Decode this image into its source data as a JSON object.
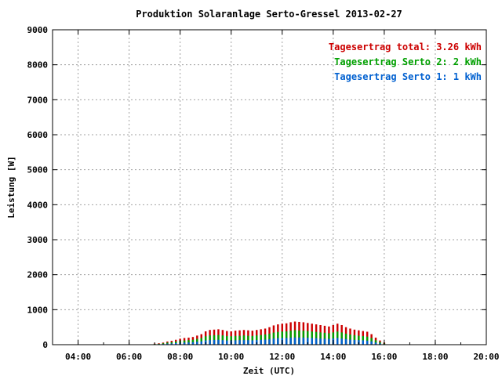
{
  "chart_data": {
    "type": "bar",
    "title": "Produktion Solaranlage Serto-Gressel 2013-02-27",
    "xlabel": "Zeit (UTC)",
    "ylabel": "Leistung [W]",
    "xlim": [
      "03:00",
      "20:00"
    ],
    "ylim": [
      0,
      9000
    ],
    "x_ticks": [
      "04:00",
      "06:00",
      "08:00",
      "10:00",
      "12:00",
      "14:00",
      "16:00",
      "18:00",
      "20:00"
    ],
    "y_ticks": [
      0,
      1000,
      2000,
      3000,
      4000,
      5000,
      6000,
      7000,
      8000,
      9000
    ],
    "grid": true,
    "legend_position": "top-right",
    "legend": [
      {
        "label": "Tagesertrag total: 3.26 kWh",
        "color": "#cc0000"
      },
      {
        "label": "Tagesertrag Serto 2: 2 kWh",
        "color": "#00a000"
      },
      {
        "label": "Tagesertrag Serto 1: 1 kWh",
        "color": "#0060d0"
      }
    ],
    "x": [
      "07:00",
      "07:10",
      "07:20",
      "07:30",
      "07:40",
      "07:50",
      "08:00",
      "08:10",
      "08:20",
      "08:30",
      "08:40",
      "08:50",
      "09:00",
      "09:10",
      "09:20",
      "09:30",
      "09:40",
      "09:50",
      "10:00",
      "10:10",
      "10:20",
      "10:30",
      "10:40",
      "10:50",
      "11:00",
      "11:10",
      "11:20",
      "11:30",
      "11:40",
      "11:50",
      "12:00",
      "12:10",
      "12:20",
      "12:30",
      "12:40",
      "12:50",
      "13:00",
      "13:10",
      "13:20",
      "13:30",
      "13:40",
      "13:50",
      "14:00",
      "14:10",
      "14:20",
      "14:30",
      "14:40",
      "14:50",
      "15:00",
      "15:10",
      "15:20",
      "15:30",
      "15:40",
      "15:50",
      "16:00"
    ],
    "series": [
      {
        "name": "Tagesertrag total: 3.26 kWh",
        "color": "#cc0000",
        "values": [
          30,
          40,
          60,
          90,
          110,
          140,
          170,
          190,
          200,
          220,
          260,
          300,
          380,
          420,
          430,
          440,
          420,
          390,
          380,
          400,
          410,
          420,
          410,
          400,
          420,
          440,
          460,
          500,
          550,
          580,
          600,
          610,
          640,
          660,
          650,
          640,
          620,
          600,
          580,
          560,
          540,
          520,
          560,
          600,
          560,
          500,
          460,
          430,
          410,
          390,
          370,
          300,
          200,
          120,
          60
        ]
      },
      {
        "name": "Tagesertrag Serto 2: 2 kWh",
        "color": "#00a000",
        "values": [
          20,
          25,
          40,
          60,
          70,
          90,
          110,
          120,
          130,
          140,
          165,
          190,
          240,
          265,
          270,
          275,
          265,
          245,
          240,
          250,
          255,
          265,
          255,
          250,
          265,
          275,
          290,
          315,
          345,
          365,
          375,
          380,
          400,
          415,
          405,
          400,
          390,
          375,
          365,
          350,
          340,
          325,
          350,
          375,
          350,
          315,
          290,
          270,
          255,
          245,
          230,
          190,
          125,
          75,
          35
        ]
      },
      {
        "name": "Tagesertrag Serto 1: 1 kWh",
        "color": "#0060d0",
        "values": [
          10,
          15,
          20,
          30,
          35,
          45,
          55,
          60,
          65,
          70,
          85,
          95,
          120,
          130,
          135,
          140,
          130,
          120,
          120,
          125,
          130,
          130,
          130,
          125,
          130,
          140,
          145,
          155,
          175,
          185,
          190,
          190,
          200,
          205,
          205,
          200,
          195,
          190,
          185,
          175,
          170,
          165,
          175,
          190,
          175,
          160,
          145,
          135,
          130,
          125,
          115,
          95,
          60,
          35,
          15
        ]
      }
    ]
  }
}
